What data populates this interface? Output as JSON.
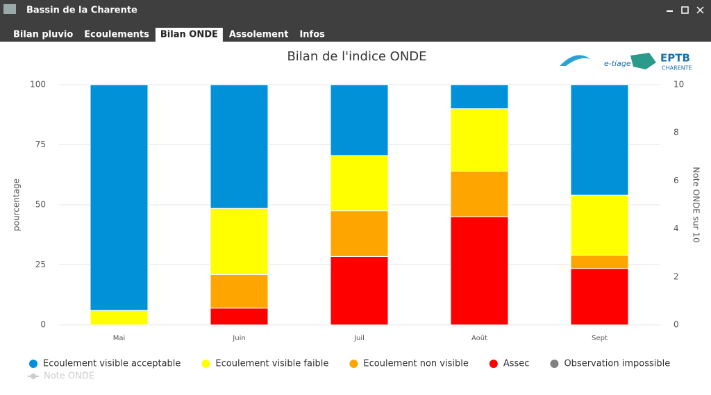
{
  "window": {
    "title": "Bassin de la Charente",
    "tabs": [
      "Bilan pluvio",
      "Ecoulements",
      "Bilan ONDE",
      "Assolement",
      "Infos"
    ],
    "active_tab": 2
  },
  "logos": {
    "etiage": "e-tiage",
    "eptb": "EPTB",
    "eptb_sub": "CHARENTE"
  },
  "chart_data": {
    "type": "stacked-bar",
    "title": "Bilan de l'indice ONDE",
    "y_label": "pourcentage",
    "y2_label": "Note ONDE sur 10",
    "categories": [
      "Mai",
      "Juin",
      "Juil",
      "Août",
      "Sept"
    ],
    "ylim": [
      0,
      100
    ],
    "yticks": [
      0,
      25,
      50,
      75,
      100
    ],
    "y2lim": [
      0,
      10
    ],
    "y2ticks": [
      0,
      2,
      4,
      6,
      8,
      10
    ],
    "grid": true,
    "series": [
      {
        "name": "Ecoulement visible acceptable",
        "color": "#0091d9",
        "values": [
          94,
          51.5,
          29.5,
          10,
          46
        ]
      },
      {
        "name": "Ecoulement visible faible",
        "color": "#ffff00",
        "values": [
          6,
          27.5,
          23,
          26,
          25
        ]
      },
      {
        "name": "Ecoulement non visible",
        "color": "#ffa500",
        "values": [
          0,
          14,
          19,
          19,
          5.5
        ]
      },
      {
        "name": "Assec",
        "color": "#ff0000",
        "values": [
          0,
          7,
          28.5,
          45,
          23.5
        ]
      },
      {
        "name": "Observation impossible",
        "color": "#808080",
        "values": [
          0,
          0,
          0,
          0,
          0
        ]
      },
      {
        "name": "Note ONDE",
        "color": "#cccccc",
        "axis": "y2",
        "hidden": true,
        "values": [
          null,
          null,
          null,
          null,
          null
        ]
      }
    ]
  }
}
